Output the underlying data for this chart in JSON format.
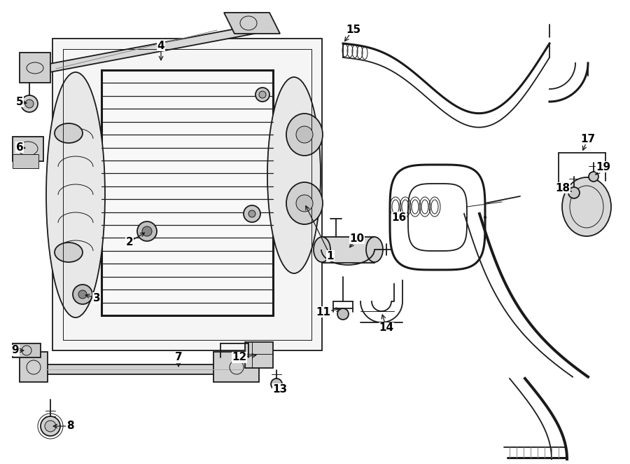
{
  "bg_color": "#ffffff",
  "line_color": "#1a1a1a",
  "fig_width": 9.0,
  "fig_height": 6.62,
  "dpi": 100,
  "lw_main": 1.3,
  "lw_thick": 2.2,
  "lw_thin": 0.7,
  "fontsize_label": 11
}
